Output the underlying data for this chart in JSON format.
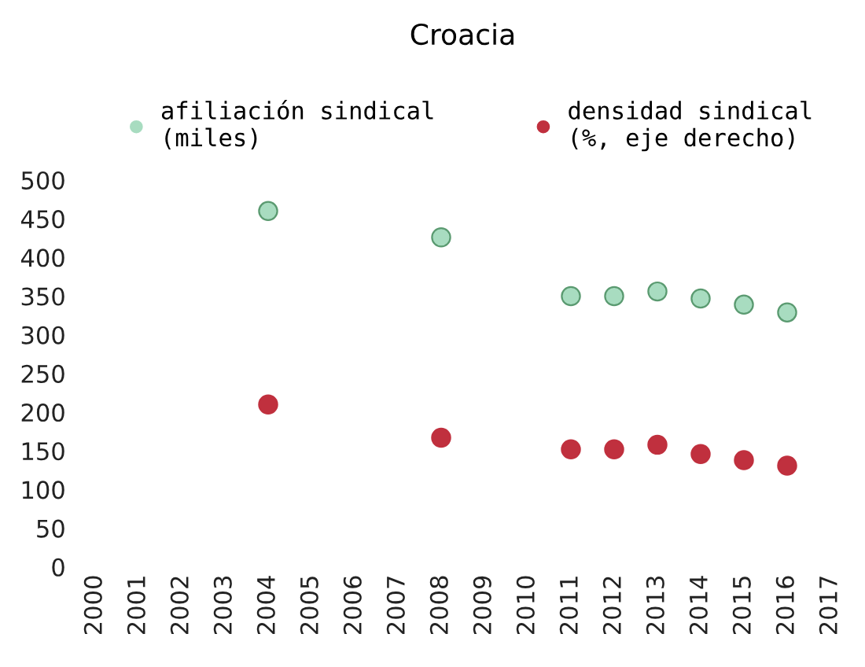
{
  "chart_data": {
    "type": "scatter",
    "title": "Croacia",
    "categories": [
      "2000",
      "2001",
      "2002",
      "2003",
      "2004",
      "2005",
      "2006",
      "2007",
      "2008",
      "2009",
      "2010",
      "2011",
      "2012",
      "2013",
      "2014",
      "2015",
      "2016",
      "2017"
    ],
    "series": [
      {
        "name": "afiliación sindical\n(miles)",
        "color": "#a8dcc0",
        "values": [
          null,
          null,
          null,
          null,
          460,
          null,
          null,
          null,
          426,
          null,
          null,
          350,
          350,
          356,
          347,
          339,
          329,
          null
        ]
      },
      {
        "name": "densidad sindical\n(%, eje derecho)",
        "color": "#c0303e",
        "values": [
          null,
          null,
          null,
          null,
          210,
          null,
          null,
          null,
          167,
          null,
          null,
          152,
          152,
          158,
          146,
          138,
          131,
          null
        ]
      }
    ],
    "ylim": [
      0,
      500
    ],
    "yticks": [
      0,
      50,
      100,
      150,
      200,
      250,
      300,
      350,
      400,
      450,
      500
    ],
    "marker": "circle",
    "legend": "top",
    "grid": false
  }
}
